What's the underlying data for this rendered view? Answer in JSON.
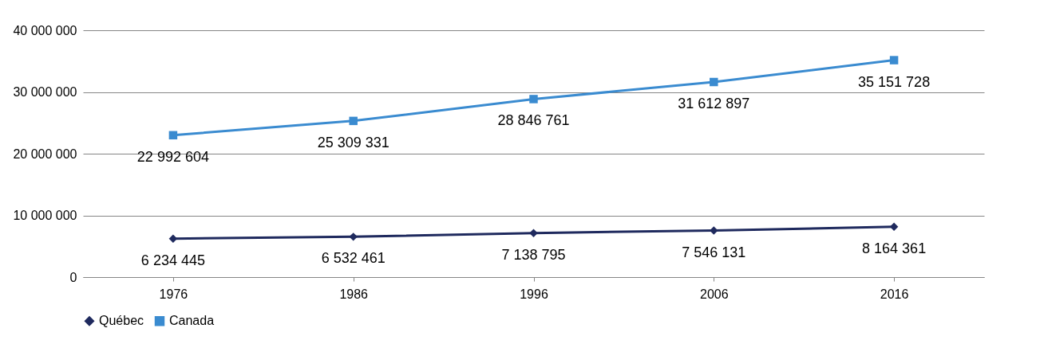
{
  "chart_data": {
    "type": "line",
    "categories": [
      "1976",
      "1986",
      "1996",
      "2006",
      "2016"
    ],
    "series": [
      {
        "name": "Québec",
        "color": "#1f2a5e",
        "marker": "diamond",
        "values": [
          6234445,
          6532461,
          7138795,
          7546131,
          8164361
        ],
        "value_labels": [
          "6 234 445",
          "6 532 461",
          "7 138 795",
          "7 546 131",
          "8 164 361"
        ]
      },
      {
        "name": "Canada",
        "color": "#3a8bd0",
        "marker": "square",
        "values": [
          22992604,
          25309331,
          28846761,
          31612897,
          35151728
        ],
        "value_labels": [
          "22 992 604",
          "25 309 331",
          "28 846 761",
          "31 612 897",
          "35 151 728"
        ]
      }
    ],
    "ylim": [
      0,
      40000000
    ],
    "yticks": [
      0,
      {
        "value": 10000000,
        "label": "10 000 000"
      },
      {
        "value": 20000000,
        "label": "20 000 000"
      },
      {
        "value": 30000000,
        "label": "30 000 000"
      },
      {
        "value": 40000000,
        "label": "40 000 000"
      }
    ],
    "grid": "y",
    "legend": "bottom",
    "line_style": "solid"
  }
}
